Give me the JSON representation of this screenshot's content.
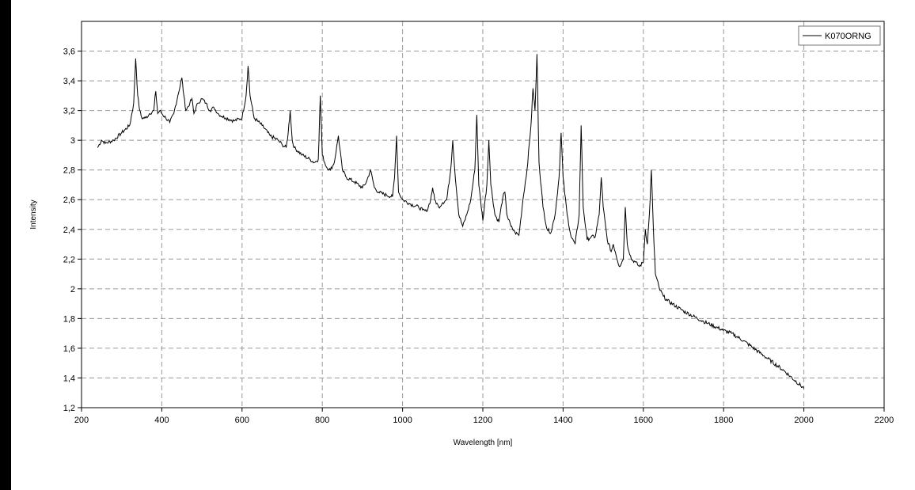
{
  "chart_data": {
    "type": "line",
    "title": "",
    "xlabel": "Wavelength [nm]",
    "ylabel": "Intensity",
    "xlim": [
      200,
      2200
    ],
    "ylim": [
      1.2,
      3.8
    ],
    "x_ticks": [
      200,
      400,
      600,
      800,
      1000,
      1200,
      1400,
      1600,
      1800,
      2000,
      2200
    ],
    "x_tick_labels": [
      "200",
      "400",
      "600",
      "800",
      "1000",
      "1200",
      "1400",
      "1600",
      "1800",
      "2000",
      "2200"
    ],
    "y_ticks": [
      1.2,
      1.4,
      1.6,
      1.8,
      2.0,
      2.2,
      2.4,
      2.6,
      2.8,
      3.0,
      3.2,
      3.4,
      3.6
    ],
    "y_tick_labels": [
      "1,2",
      "1,4",
      "1,6",
      "1,8",
      "2",
      "2,2",
      "2,4",
      "2,6",
      "2,8",
      "3",
      "3,2",
      "3,4",
      "3,6"
    ],
    "grid": true,
    "legend": {
      "position": "top-right",
      "entries": [
        "K070ORNG"
      ]
    },
    "series": [
      {
        "name": "K070ORNG",
        "color": "#000000",
        "x": [
          240,
          250,
          260,
          280,
          300,
          320,
          330,
          335,
          340,
          345,
          350,
          360,
          370,
          380,
          385,
          390,
          395,
          400,
          410,
          420,
          430,
          440,
          450,
          455,
          460,
          470,
          475,
          480,
          490,
          500,
          510,
          520,
          530,
          540,
          550,
          560,
          580,
          600,
          610,
          615,
          620,
          630,
          650,
          670,
          690,
          700,
          710,
          715,
          720,
          725,
          730,
          750,
          770,
          780,
          790,
          795,
          800,
          810,
          820,
          830,
          840,
          850,
          860,
          880,
          900,
          910,
          920,
          930,
          940,
          960,
          975,
          980,
          985,
          990,
          1000,
          1020,
          1040,
          1050,
          1060,
          1070,
          1075,
          1080,
          1090,
          1100,
          1110,
          1120,
          1125,
          1130,
          1140,
          1150,
          1160,
          1170,
          1180,
          1185,
          1190,
          1200,
          1210,
          1215,
          1220,
          1230,
          1240,
          1250,
          1255,
          1260,
          1270,
          1280,
          1290,
          1300,
          1310,
          1320,
          1325,
          1330,
          1335,
          1340,
          1350,
          1360,
          1370,
          1380,
          1390,
          1395,
          1400,
          1410,
          1420,
          1430,
          1440,
          1445,
          1450,
          1460,
          1470,
          1480,
          1490,
          1495,
          1500,
          1510,
          1520,
          1525,
          1530,
          1540,
          1550,
          1555,
          1560,
          1570,
          1580,
          1590,
          1600,
          1605,
          1610,
          1615,
          1620,
          1625,
          1630,
          1640,
          1650,
          1660,
          1700,
          1750,
          1800,
          1820,
          1850,
          1900,
          1950,
          2000
        ],
        "values": [
          2.95,
          3.0,
          2.98,
          3.0,
          3.05,
          3.1,
          3.25,
          3.55,
          3.3,
          3.2,
          3.15,
          3.15,
          3.18,
          3.2,
          3.33,
          3.18,
          3.2,
          3.18,
          3.15,
          3.12,
          3.18,
          3.3,
          3.42,
          3.3,
          3.2,
          3.25,
          3.28,
          3.18,
          3.25,
          3.28,
          3.25,
          3.2,
          3.22,
          3.18,
          3.16,
          3.15,
          3.13,
          3.15,
          3.3,
          3.5,
          3.3,
          3.15,
          3.1,
          3.03,
          3.0,
          2.97,
          2.95,
          3.05,
          3.2,
          3.0,
          2.95,
          2.9,
          2.87,
          2.85,
          2.87,
          3.3,
          2.9,
          2.82,
          2.8,
          2.85,
          3.03,
          2.8,
          2.75,
          2.72,
          2.68,
          2.72,
          2.8,
          2.68,
          2.65,
          2.63,
          2.62,
          2.75,
          3.03,
          2.65,
          2.6,
          2.57,
          2.55,
          2.53,
          2.52,
          2.6,
          2.68,
          2.6,
          2.55,
          2.58,
          2.6,
          2.8,
          3.0,
          2.8,
          2.5,
          2.42,
          2.5,
          2.6,
          2.8,
          3.17,
          2.7,
          2.46,
          2.7,
          3.0,
          2.7,
          2.5,
          2.45,
          2.62,
          2.65,
          2.5,
          2.42,
          2.38,
          2.36,
          2.6,
          2.8,
          3.1,
          3.35,
          3.2,
          3.58,
          2.85,
          2.55,
          2.4,
          2.38,
          2.5,
          2.75,
          3.05,
          2.75,
          2.5,
          2.35,
          2.3,
          2.5,
          3.1,
          2.55,
          2.33,
          2.35,
          2.35,
          2.5,
          2.75,
          2.55,
          2.33,
          2.25,
          2.3,
          2.25,
          2.15,
          2.2,
          2.55,
          2.3,
          2.2,
          2.18,
          2.15,
          2.18,
          2.4,
          2.3,
          2.5,
          2.8,
          2.4,
          2.1,
          2.0,
          1.95,
          1.92,
          1.85,
          1.78,
          1.72,
          1.7,
          1.65,
          1.55,
          1.45,
          1.33
        ]
      }
    ]
  }
}
